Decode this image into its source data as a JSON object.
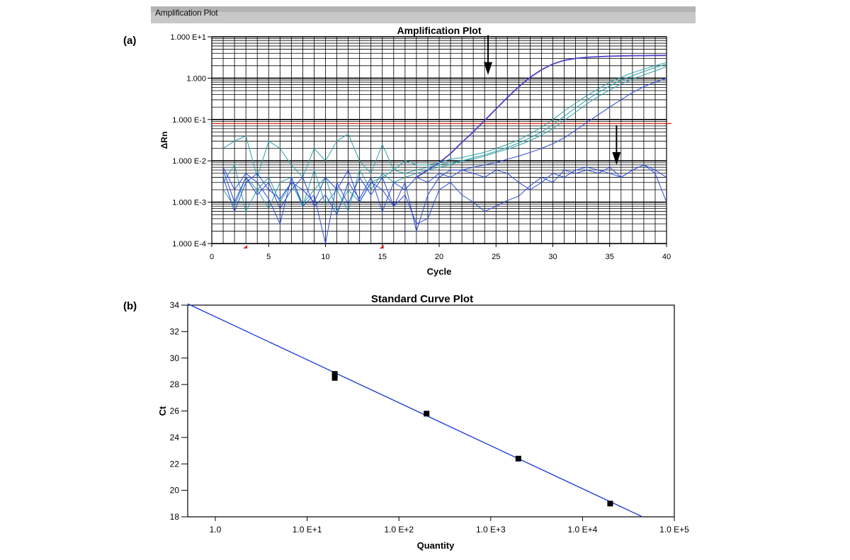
{
  "window": {
    "title": "Amplification Plot"
  },
  "panels": {
    "a_label": "(a)",
    "b_label": "(b)"
  },
  "colors": {
    "threshold": "#e03020",
    "grid": "#000000",
    "series_strong": "#4b3fc8",
    "series_teal": "#2aa0a8",
    "series_blue": "#2a4ad8",
    "fit_line": "#1a3ad8",
    "points": "#000000"
  },
  "chart_data": [
    {
      "type": "line",
      "title": "Amplification Plot",
      "xlabel": "Cycle",
      "ylabel": "ΔRn",
      "yscale": "log",
      "xlim": [
        0,
        40
      ],
      "ylim": [
        0.0001,
        10
      ],
      "x_ticks": [
        0,
        5,
        10,
        15,
        20,
        25,
        30,
        35,
        40
      ],
      "y_ticks": [
        {
          "value": 10,
          "label": "1.000 E+1"
        },
        {
          "value": 1,
          "label": "1.000"
        },
        {
          "value": 0.1,
          "label": "1.000 E-1"
        },
        {
          "value": 0.01,
          "label": "1.000 E-2"
        },
        {
          "value": 0.001,
          "label": "1.000 E-3"
        },
        {
          "value": 0.0001,
          "label": "1.000 E-4"
        }
      ],
      "grid": true,
      "threshold": 0.08,
      "annotations": [
        {
          "type": "arrow-down",
          "x": 24.3,
          "y": 1.2
        },
        {
          "type": "arrow-down",
          "x": 35.6,
          "y": 0.008
        }
      ],
      "start_markers": [
        3,
        15
      ],
      "series": [
        {
          "color": "series_strong",
          "width": 1.8,
          "x": [
            18,
            19,
            20,
            21,
            22,
            23,
            24,
            25,
            26,
            27,
            28,
            29,
            30,
            31,
            32,
            33,
            34,
            35,
            36,
            37,
            38,
            39,
            40
          ],
          "y": [
            0.004,
            0.006,
            0.009,
            0.015,
            0.028,
            0.05,
            0.095,
            0.18,
            0.34,
            0.62,
            1.05,
            1.6,
            2.2,
            2.7,
            3.0,
            3.2,
            3.3,
            3.4,
            3.45,
            3.5,
            3.5,
            3.55,
            3.55
          ]
        },
        {
          "color": "series_teal",
          "width": 1,
          "x": [
            1,
            2,
            3,
            4,
            5,
            6,
            7,
            8,
            9,
            10,
            11,
            12,
            13,
            14,
            15,
            16,
            17,
            18,
            19,
            20,
            21,
            22,
            23,
            24,
            25,
            26,
            27,
            28,
            29,
            30,
            31,
            32,
            33,
            34,
            35,
            36,
            37,
            38,
            39,
            40
          ],
          "y": [
            0.02,
            0.03,
            0.04,
            0.004,
            0.03,
            0.02,
            0.008,
            0.004,
            0.02,
            0.01,
            0.03,
            0.045,
            0.01,
            0.005,
            0.025,
            0.006,
            0.01,
            0.008,
            0.008,
            0.009,
            0.011,
            0.012,
            0.014,
            0.016,
            0.02,
            0.025,
            0.032,
            0.045,
            0.065,
            0.1,
            0.16,
            0.25,
            0.38,
            0.55,
            0.8,
            1.05,
            1.35,
            1.65,
            2.0,
            2.4
          ]
        },
        {
          "color": "series_teal",
          "width": 1,
          "x": [
            1,
            2,
            3,
            4,
            5,
            6,
            7,
            8,
            9,
            10,
            11,
            12,
            13,
            14,
            15,
            16,
            17,
            18,
            19,
            20,
            21,
            22,
            23,
            24,
            25,
            26,
            27,
            28,
            29,
            30,
            31,
            32,
            33,
            34,
            35,
            36,
            37,
            38,
            39,
            40
          ],
          "y": [
            0.003,
            0.008,
            0.0006,
            0.002,
            0.004,
            0.001,
            0.003,
            0.0008,
            0.006,
            0.0009,
            0.002,
            0.0006,
            0.006,
            0.002,
            0.005,
            0.003,
            0.004,
            0.005,
            0.006,
            0.007,
            0.008,
            0.01,
            0.012,
            0.014,
            0.017,
            0.021,
            0.027,
            0.036,
            0.05,
            0.075,
            0.12,
            0.19,
            0.3,
            0.45,
            0.65,
            0.9,
            1.15,
            1.45,
            1.8,
            2.2
          ]
        },
        {
          "color": "series_teal",
          "width": 1,
          "x": [
            1,
            2,
            3,
            4,
            5,
            6,
            7,
            8,
            9,
            10,
            11,
            12,
            13,
            14,
            15,
            16,
            17,
            18,
            19,
            20,
            21,
            22,
            23,
            24,
            25,
            26,
            27,
            28,
            29,
            30,
            31,
            32,
            33,
            34,
            35,
            36,
            37,
            38,
            39,
            40
          ],
          "y": [
            0.002,
            0.0008,
            0.004,
            0.002,
            0.0007,
            0.003,
            0.004,
            0.0009,
            0.002,
            0.004,
            0.0006,
            0.002,
            0.001,
            0.003,
            0.004,
            0.006,
            0.005,
            0.006,
            0.007,
            0.008,
            0.009,
            0.01,
            0.011,
            0.013,
            0.016,
            0.019,
            0.024,
            0.031,
            0.042,
            0.06,
            0.095,
            0.15,
            0.24,
            0.36,
            0.52,
            0.72,
            0.95,
            1.2,
            1.5,
            1.9
          ]
        },
        {
          "color": "series_blue",
          "width": 1,
          "x": [
            1,
            2,
            3,
            4,
            5,
            6,
            7,
            8,
            9,
            10,
            11,
            12,
            13,
            14,
            15,
            16,
            17,
            18,
            19,
            20,
            21,
            22,
            23,
            24,
            25,
            26,
            27,
            28,
            29,
            30,
            31,
            32,
            33,
            34,
            35,
            36,
            37,
            38,
            39,
            40
          ],
          "y": [
            0.007,
            0.002,
            0.005,
            0.003,
            0.0012,
            0.0003,
            0.004,
            0.0008,
            0.0015,
            0.0001,
            0.003,
            0.0009,
            0.004,
            0.0015,
            0.004,
            0.0008,
            0.003,
            0.0002,
            0.0015,
            0.004,
            0.006,
            0.006,
            0.007,
            0.008,
            0.009,
            0.011,
            0.013,
            0.016,
            0.02,
            0.026,
            0.036,
            0.055,
            0.085,
            0.13,
            0.2,
            0.3,
            0.45,
            0.62,
            0.8,
            1.0
          ]
        },
        {
          "color": "series_blue",
          "width": 1,
          "x": [
            1,
            2,
            3,
            4,
            5,
            6,
            7,
            8,
            9,
            10,
            11,
            12,
            13,
            14,
            15,
            16,
            17,
            18,
            19,
            20,
            21,
            22,
            23,
            24,
            25,
            26,
            27,
            28,
            29,
            30,
            31,
            32,
            33,
            34,
            35,
            36,
            37,
            38,
            39,
            40
          ],
          "y": [
            0.004,
            0.0006,
            0.003,
            0.005,
            0.002,
            0.0012,
            0.003,
            0.002,
            0.001,
            0.004,
            0.002,
            0.006,
            0.001,
            0.003,
            0.002,
            0.0008,
            0.0015,
            0.0003,
            0.0004,
            0.002,
            0.003,
            0.0015,
            0.001,
            0.0006,
            0.0008,
            0.0011,
            0.0014,
            0.0025,
            0.004,
            0.003,
            0.006,
            0.005,
            0.006,
            0.005,
            0.007,
            0.004,
            0.006,
            0.008,
            0.006,
            0.004
          ]
        },
        {
          "color": "series_blue",
          "width": 1,
          "x": [
            1,
            2,
            3,
            4,
            5,
            6,
            7,
            8,
            9,
            10,
            11,
            12,
            13,
            14,
            15,
            16,
            17,
            18,
            19,
            20,
            21,
            22,
            23,
            24,
            25,
            26,
            27,
            28,
            29,
            30,
            31,
            32,
            33,
            34,
            35,
            36,
            37,
            38,
            39,
            40
          ],
          "y": [
            0.006,
            0.001,
            0.004,
            0.0015,
            0.003,
            0.0007,
            0.002,
            0.004,
            0.0008,
            0.0015,
            0.0005,
            0.003,
            0.0012,
            0.004,
            0.0006,
            0.003,
            0.002,
            0.004,
            0.003,
            0.005,
            0.004,
            0.006,
            0.005,
            0.004,
            0.006,
            0.005,
            0.003,
            0.002,
            0.003,
            0.005,
            0.004,
            0.006,
            0.007,
            0.006,
            0.005,
            0.004,
            0.006,
            0.008,
            0.005,
            0.001
          ]
        }
      ]
    },
    {
      "type": "scatter",
      "title": "Standard Curve Plot",
      "xlabel": "Quantity",
      "ylabel": "Ct",
      "xscale": "log",
      "xlim": [
        0.5,
        100000
      ],
      "ylim": [
        18,
        34
      ],
      "x_ticks": [
        {
          "value": 1,
          "label": "1.0"
        },
        {
          "value": 10,
          "label": "1.0 E+1"
        },
        {
          "value": 100,
          "label": "1.0 E+2"
        },
        {
          "value": 1000,
          "label": "1.0 E+3"
        },
        {
          "value": 10000,
          "label": "1.0 E+4"
        },
        {
          "value": 100000,
          "label": "1.0 E+5"
        }
      ],
      "y_ticks": [
        18,
        20,
        22,
        24,
        26,
        28,
        30,
        32,
        34
      ],
      "grid": false,
      "points": [
        {
          "x": 20,
          "y": 28.8
        },
        {
          "x": 20,
          "y": 28.5
        },
        {
          "x": 200,
          "y": 25.8
        },
        {
          "x": 2000,
          "y": 22.4
        },
        {
          "x": 20000,
          "y": 19.0
        }
      ],
      "fit_line": {
        "x": [
          0.5,
          45000
        ],
        "y": [
          34.1,
          18.0
        ]
      }
    }
  ]
}
